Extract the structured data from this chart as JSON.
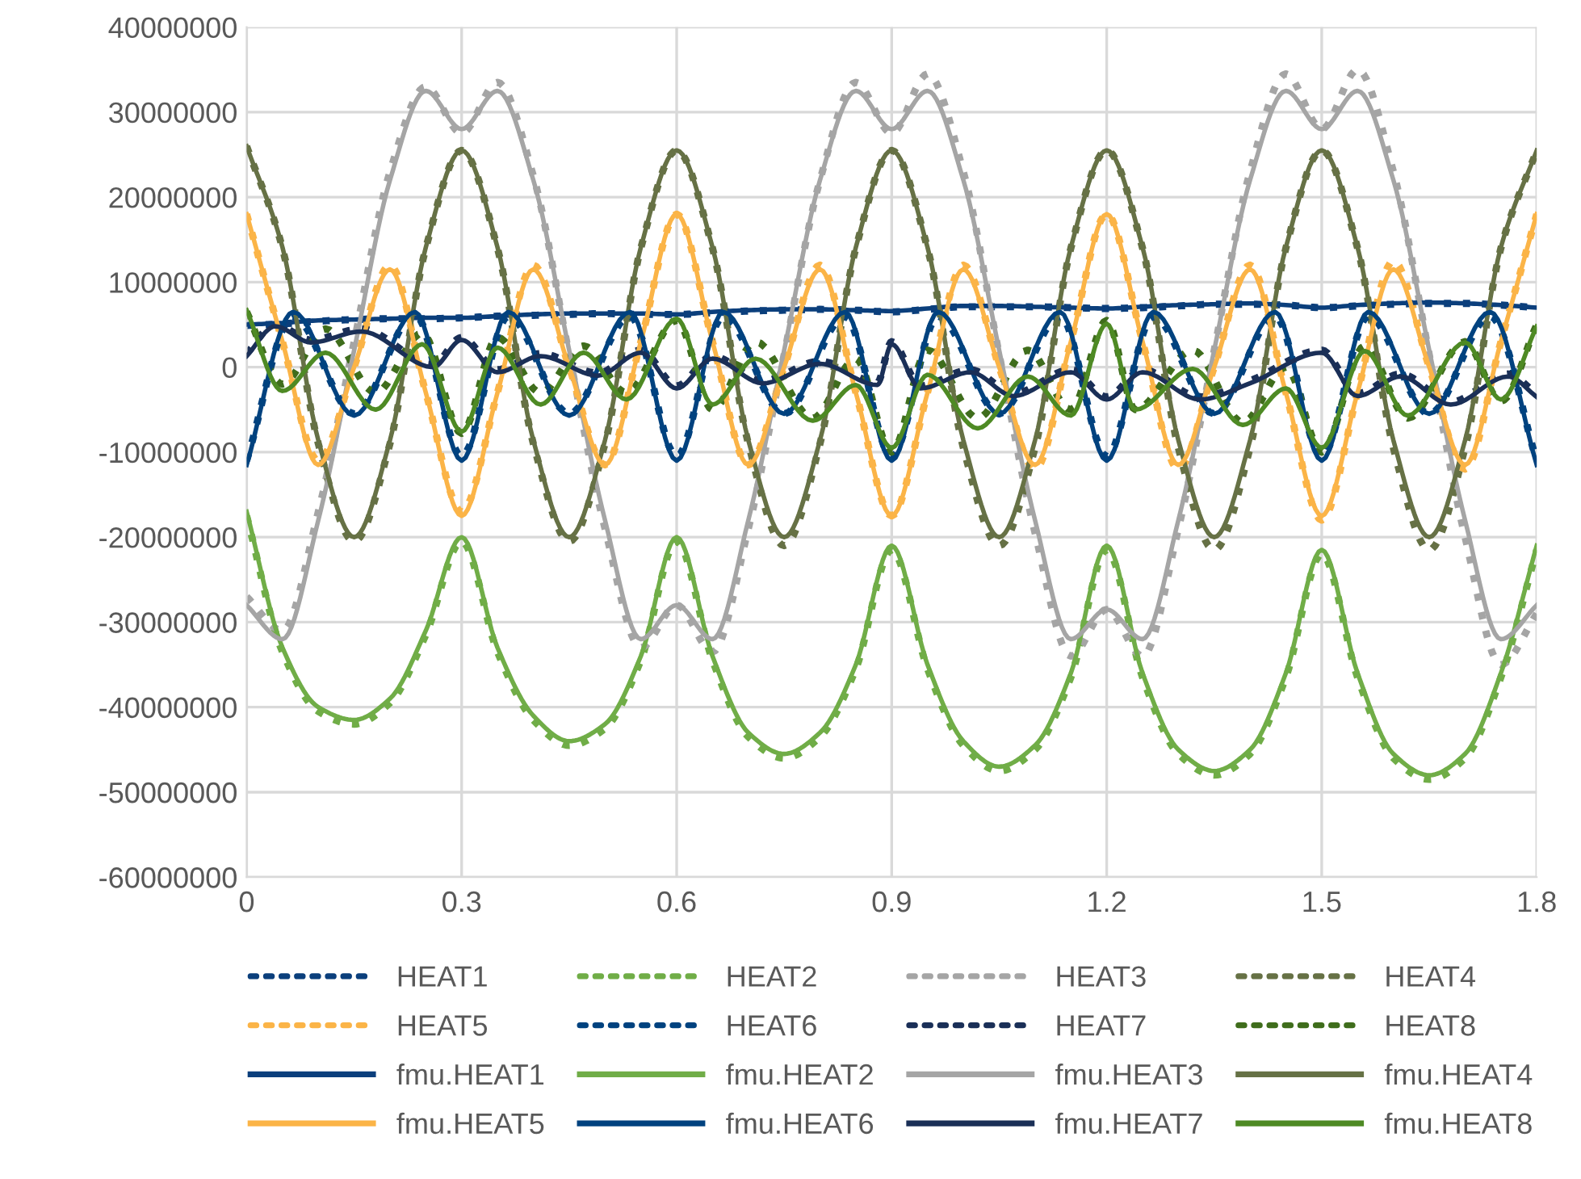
{
  "chart_data": {
    "type": "line",
    "x": [
      0,
      0.05,
      0.1,
      0.15,
      0.2,
      0.25,
      0.3,
      0.35,
      0.4,
      0.45,
      0.5,
      0.55,
      0.6,
      0.65,
      0.7,
      0.75,
      0.8,
      0.85,
      0.9,
      0.95,
      1.0,
      1.05,
      1.1,
      1.15,
      1.2,
      1.25,
      1.3,
      1.35,
      1.4,
      1.45,
      1.5,
      1.55,
      1.6,
      1.65,
      1.7,
      1.75,
      1.8
    ],
    "xlim": [
      0,
      1.8
    ],
    "xticks": [
      0,
      0.3,
      0.6,
      0.9,
      1.2,
      1.5,
      1.8
    ],
    "ylim": [
      -60000000,
      40000000
    ],
    "yticks": [
      -60000000,
      -50000000,
      -40000000,
      -30000000,
      -20000000,
      -10000000,
      0,
      10000000,
      20000000,
      30000000,
      40000000
    ],
    "grid": true,
    "legend": "bottom",
    "marker": "none",
    "series": [
      {
        "name": "HEAT1",
        "color": "#0b3f7c",
        "line_style": "dotted",
        "values": [
          4900000.0,
          5100000.0,
          5400000.0,
          5600000.0,
          5700000.0,
          5700000.0,
          5800000.0,
          6000000.0,
          6100000.0,
          6200000.0,
          6300000.0,
          6200000.0,
          6200000.0,
          6400000.0,
          6600000.0,
          6700000.0,
          6800000.0,
          6700000.0,
          6500000.0,
          6800000.0,
          7100000.0,
          7100000.0,
          7100000.0,
          7000000.0,
          6900000.0,
          7000000.0,
          7200000.0,
          7400000.0,
          7400000.0,
          7300000.0,
          7000000.0,
          7200000.0,
          7400000.0,
          7500000.0,
          7500000.0,
          7300000.0,
          7000000.0
        ]
      },
      {
        "name": "HEAT2",
        "color": "#70ad47",
        "line_style": "dotted",
        "values": [
          -17500000.0,
          -33500000.0,
          -40500000.0,
          -42000000.0,
          -39500000.0,
          -31500000.0,
          -20500000.0,
          -33500000.0,
          -41500000.0,
          -44500000.0,
          -42500000.0,
          -34500000.0,
          -20500000.0,
          -34500000.0,
          -43500000.0,
          -46000000.0,
          -43500000.0,
          -35500000.0,
          -21500000.0,
          -35500000.0,
          -44500000.0,
          -47500000.0,
          -45000000.0,
          -36500000.0,
          -21500000.0,
          -36500000.0,
          -45500000.0,
          -48000000.0,
          -45500000.0,
          -36500000.0,
          -22000000.0,
          -36500000.0,
          -46000000.0,
          -48500000.0,
          -46000000.0,
          -36500000.0,
          -21500000.0
        ]
      },
      {
        "name": "HEAT3",
        "color": "#a5a5a5",
        "line_style": "dotted",
        "values": [
          -27000000.0,
          -31000000.0,
          -17000000.0,
          3000000.0,
          23000000.0,
          33000000.0,
          27500000.0,
          33500000.0,
          22500000.0,
          1500000.0,
          -19000000.0,
          -33000000.0,
          -28000000.0,
          -33500000.0,
          -19000000.0,
          1500000.0,
          22000000.0,
          33500000.0,
          27500000.0,
          34500000.0,
          23000000.0,
          1500000.0,
          -19500000.0,
          -34000000.0,
          -28500000.0,
          -34000000.0,
          -19000000.0,
          2000000.0,
          23000000.0,
          34500000.0,
          28000000.0,
          35000000.0,
          23000000.0,
          1500000.0,
          -20000000.0,
          -35000000.0,
          -29000000.0
        ]
      },
      {
        "name": "HEAT4",
        "color": "#667145",
        "line_style": "dotted",
        "values": [
          26000000.0,
          14000000.0,
          -9000000.0,
          -20500000.0,
          -9000000.0,
          14000000.0,
          25500000.0,
          14000000.0,
          -9000000.0,
          -20500000.0,
          -9000000.0,
          14000000.0,
          25500000.0,
          14000000.0,
          -9000000.0,
          -21000000.0,
          -9000000.0,
          14000000.0,
          25500000.0,
          14000000.0,
          -9500000.0,
          -21000000.0,
          -9500000.0,
          14000000.0,
          25500000.0,
          14000000.0,
          -9500000.0,
          -21500000.0,
          -9500000.0,
          14000000.0,
          25500000.0,
          14000000.0,
          -9500000.0,
          -21500000.0,
          -9500000.0,
          14000000.0,
          25500000.0
        ]
      },
      {
        "name": "HEAT5",
        "color": "#fbb447",
        "line_style": "dotted",
        "values": [
          18000000.0,
          3000000.0,
          -11000000.0,
          0,
          12000000.0,
          -3000000.0,
          -17000000.0,
          -3000000.0,
          12000000.0,
          0,
          -11500000.0,
          3000000.0,
          18000000.0,
          3000000.0,
          -11500000.0,
          0,
          12000000.0,
          -3000000.0,
          -17500000.0,
          -3000000.0,
          12000000.0,
          0,
          -12000000.0,
          3000000.0,
          18000000.0,
          3000000.0,
          -12000000.0,
          0,
          12000000.0,
          -3000000.0,
          -18000000.0,
          -3000000.0,
          12500000.0,
          0,
          -12000000.0,
          3000000.0,
          18000000.0
        ]
      },
      {
        "name": "HEAT6",
        "color": "#00427f",
        "line_style": "dotted",
        "x": [
          0,
          0.065,
          0.15,
          0.235,
          0.3,
          0.365,
          0.45,
          0.535,
          0.6,
          0.665,
          0.75,
          0.835,
          0.9,
          0.965,
          1.05,
          1.135,
          1.2,
          1.265,
          1.35,
          1.435,
          1.5,
          1.565,
          1.65,
          1.735,
          1.8
        ],
        "values": [
          -11000000.0,
          6000000.0,
          -5500000.0,
          6200000.0,
          -10500000.0,
          6000000.0,
          -5500000.0,
          6000000.0,
          -10500000.0,
          6000000.0,
          -5500000.0,
          6000000.0,
          -10500000.0,
          6000000.0,
          -5500000.0,
          6000000.0,
          -10500000.0,
          6000000.0,
          -5500000.0,
          6000000.0,
          -10500000.0,
          6000000.0,
          -5500000.0,
          6000000.0,
          -11000000.0
        ]
      },
      {
        "name": "HEAT7",
        "color": "#1a2f57",
        "line_style": "dotted",
        "x": [
          0,
          0.04,
          0.09,
          0.16,
          0.26,
          0.3,
          0.35,
          0.41,
          0.49,
          0.55,
          0.6,
          0.65,
          0.72,
          0.8,
          0.88,
          0.9,
          0.94,
          1.01,
          1.07,
          1.15,
          1.2,
          1.25,
          1.33,
          1.4,
          1.5,
          1.55,
          1.61,
          1.68,
          1.76,
          1.8
        ],
        "values": [
          1600000.0,
          5000000.0,
          3200000.0,
          4500000.0,
          300000.0,
          3500000.0,
          -300000.0,
          1600000.0,
          -700000.0,
          2000000.0,
          -2200000.0,
          1300000.0,
          -1600000.0,
          700000.0,
          -1800000.0,
          3000000.0,
          -2200000.0,
          -300000.0,
          -3100000.0,
          -300000.0,
          -3500000.0,
          -300000.0,
          -3500000.0,
          -1600000.0,
          2000000.0,
          -3100000.0,
          -800000.0,
          -4100000.0,
          -800000.0,
          -3200000.0
        ]
      },
      {
        "name": "HEAT8",
        "color": "#3f6d1c",
        "line_style": "dotted",
        "x": [
          0,
          0.05,
          0.11,
          0.18,
          0.245,
          0.3,
          0.35,
          0.41,
          0.47,
          0.53,
          0.6,
          0.65,
          0.71,
          0.79,
          0.85,
          0.9,
          0.95,
          1.02,
          1.09,
          1.15,
          1.2,
          1.24,
          1.32,
          1.39,
          1.45,
          1.5,
          1.56,
          1.62,
          1.7,
          1.75,
          1.8
        ],
        "values": [
          6500000.0,
          -2000000.0,
          4500000.0,
          -3000000.0,
          4000000.0,
          -7800000.0,
          3500000.0,
          -3000000.0,
          2500000.0,
          -3000000.0,
          5500000.0,
          -5000000.0,
          3000000.0,
          -6000000.0,
          1000000.0,
          -10000000.0,
          2000000.0,
          -6000000.0,
          2000000.0,
          -5000000.0,
          5500000.0,
          -5000000.0,
          2000000.0,
          -6500000.0,
          0,
          -10000000.0,
          2500000.0,
          -6000000.0,
          3000000.0,
          -4000000.0,
          5000000.0
        ]
      },
      {
        "name": "fmu.HEAT1",
        "color": "#0b3f7c",
        "line_style": "solid",
        "values": [
          5000000.0,
          5200000.0,
          5500000.0,
          5600000.0,
          5700000.0,
          5800000.0,
          5800000.0,
          6000000.0,
          6200000.0,
          6300000.0,
          6300000.0,
          6300000.0,
          6200000.0,
          6500000.0,
          6700000.0,
          6800000.0,
          6800000.0,
          6700000.0,
          6600000.0,
          6900000.0,
          7200000.0,
          7200000.0,
          7100000.0,
          7000000.0,
          6900000.0,
          7100000.0,
          7300000.0,
          7400000.0,
          7500000.0,
          7300000.0,
          7000000.0,
          7300000.0,
          7500000.0,
          7600000.0,
          7500000.0,
          7300000.0,
          7000000.0
        ]
      },
      {
        "name": "fmu.HEAT2",
        "color": "#70ad47",
        "line_style": "solid",
        "values": [
          -17000000.0,
          -33000000.0,
          -40000000.0,
          -41500000.0,
          -39000000.0,
          -31000000.0,
          -20000000.0,
          -33000000.0,
          -41000000.0,
          -44000000.0,
          -42000000.0,
          -34000000.0,
          -20000000.0,
          -34000000.0,
          -43000000.0,
          -45500000.0,
          -43000000.0,
          -35000000.0,
          -21000000.0,
          -35000000.0,
          -44000000.0,
          -47000000.0,
          -44500000.0,
          -36000000.0,
          -21000000.0,
          -36000000.0,
          -45000000.0,
          -47500000.0,
          -45000000.0,
          -36000000.0,
          -21500000.0,
          -36000000.0,
          -45500000.0,
          -48000000.0,
          -45500000.0,
          -36000000.0,
          -21000000.0
        ]
      },
      {
        "name": "fmu.HEAT3",
        "color": "#a5a5a5",
        "line_style": "solid",
        "values": [
          -28000000.0,
          -32000000.0,
          -18000000.0,
          2000000.0,
          22000000.0,
          32500000.0,
          28000000.0,
          32500000.0,
          22000000.0,
          2000000.0,
          -18000000.0,
          -32000000.0,
          -28000000.0,
          -32000000.0,
          -18000000.0,
          2000000.0,
          22000000.0,
          32500000.0,
          28000000.0,
          32500000.0,
          22000000.0,
          2000000.0,
          -18000000.0,
          -32000000.0,
          -28500000.0,
          -32000000.0,
          -18000000.0,
          2000000.0,
          22000000.0,
          32500000.0,
          28000000.0,
          32500000.0,
          22000000.0,
          2000000.0,
          -18000000.0,
          -32000000.0,
          -28000000.0
        ]
      },
      {
        "name": "fmu.HEAT4",
        "color": "#667145",
        "line_style": "solid",
        "values": [
          26000000.0,
          14100000.0,
          -8600000.0,
          -20000000.0,
          -8600000.0,
          14100000.0,
          25500000.0,
          14100000.0,
          -8600000.0,
          -20000000.0,
          -8600000.0,
          14100000.0,
          25500000.0,
          14100000.0,
          -8600000.0,
          -20000000.0,
          -8600000.0,
          14100000.0,
          25500000.0,
          14100000.0,
          -8600000.0,
          -20000000.0,
          -8600000.0,
          14100000.0,
          25500000.0,
          14100000.0,
          -8600000.0,
          -20000000.0,
          -8600000.0,
          14100000.0,
          25500000.0,
          14100000.0,
          -8600000.0,
          -20000000.0,
          -8600000.0,
          14100000.0,
          25500000.0
        ]
      },
      {
        "name": "fmu.HEAT5",
        "color": "#fbb447",
        "line_style": "solid",
        "values": [
          18000000.0,
          3000000.0,
          -11500000.0,
          0,
          11500000.0,
          -3000000.0,
          -17500000.0,
          -3000000.0,
          11500000.0,
          0,
          -11500000.0,
          3000000.0,
          18000000.0,
          3000000.0,
          -11500000.0,
          0,
          11500000.0,
          -3000000.0,
          -17500000.0,
          -3000000.0,
          11500000.0,
          0,
          -11500000.0,
          3000000.0,
          18000000.0,
          3000000.0,
          -11500000.0,
          0,
          11500000.0,
          -3000000.0,
          -17500000.0,
          -3000000.0,
          11500000.0,
          0,
          -11500000.0,
          3000000.0,
          18000000.0
        ]
      },
      {
        "name": "fmu.HEAT6",
        "color": "#00427f",
        "line_style": "solid",
        "x": [
          0,
          0.065,
          0.15,
          0.235,
          0.3,
          0.365,
          0.45,
          0.535,
          0.6,
          0.665,
          0.75,
          0.835,
          0.9,
          0.965,
          1.05,
          1.135,
          1.2,
          1.265,
          1.35,
          1.435,
          1.5,
          1.565,
          1.65,
          1.735,
          1.8
        ],
        "values": [
          -11500000.0,
          6500000.0,
          -5700000.0,
          6500000.0,
          -11000000.0,
          6500000.0,
          -5700000.0,
          6500000.0,
          -11000000.0,
          6500000.0,
          -5500000.0,
          6500000.0,
          -11000000.0,
          6500000.0,
          -5500000.0,
          6500000.0,
          -11000000.0,
          6500000.0,
          -5500000.0,
          6500000.0,
          -11000000.0,
          6500000.0,
          -5500000.0,
          6500000.0,
          -11500000.0
        ]
      },
      {
        "name": "fmu.HEAT7",
        "color": "#1a2f57",
        "line_style": "solid",
        "x": [
          0,
          0.04,
          0.09,
          0.16,
          0.26,
          0.3,
          0.35,
          0.41,
          0.49,
          0.55,
          0.6,
          0.65,
          0.72,
          0.8,
          0.88,
          0.9,
          0.94,
          1.01,
          1.07,
          1.15,
          1.2,
          1.25,
          1.33,
          1.4,
          1.5,
          1.55,
          1.61,
          1.68,
          1.76,
          1.8
        ],
        "values": [
          1300000.0,
          4800000.0,
          2900000.0,
          4200000.0,
          0,
          3200000.0,
          -600000.0,
          1300000.0,
          -1000000.0,
          1700000.0,
          -2500000.0,
          1000000.0,
          -1900000.0,
          400000.0,
          -2100000.0,
          2700000.0,
          -2500000.0,
          -600000.0,
          -3400000.0,
          -600000.0,
          -3800000.0,
          -600000.0,
          -3800000.0,
          -1900000.0,
          1700000.0,
          -3400000.0,
          -1100000.0,
          -4400000.0,
          -1100000.0,
          -3500000.0
        ]
      },
      {
        "name": "fmu.HEAT8",
        "color": "#4e8a24",
        "line_style": "solid",
        "x": [
          0,
          0.05,
          0.11,
          0.18,
          0.245,
          0.3,
          0.35,
          0.41,
          0.47,
          0.53,
          0.6,
          0.65,
          0.71,
          0.79,
          0.85,
          0.9,
          0.95,
          1.02,
          1.09,
          1.15,
          1.2,
          1.24,
          1.32,
          1.39,
          1.45,
          1.5,
          1.56,
          1.62,
          1.7,
          1.75,
          1.8
        ],
        "values": [
          6700000.0,
          -2800000.0,
          1700000.0,
          -5000000.0,
          2700000.0,
          -7600000.0,
          2300000.0,
          -4400000.0,
          1700000.0,
          -3800000.0,
          5700000.0,
          -4400000.0,
          1000000.0,
          -6300000.0,
          -2100000.0,
          -9500000.0,
          -900000.0,
          -7200000.0,
          -1100000.0,
          -5700000.0,
          5100000.0,
          -5000000.0,
          -200000.0,
          -6800000.0,
          -2500000.0,
          -9500000.0,
          1900000.0,
          -5700000.0,
          2900000.0,
          -3800000.0,
          4800000.0
        ]
      }
    ]
  }
}
